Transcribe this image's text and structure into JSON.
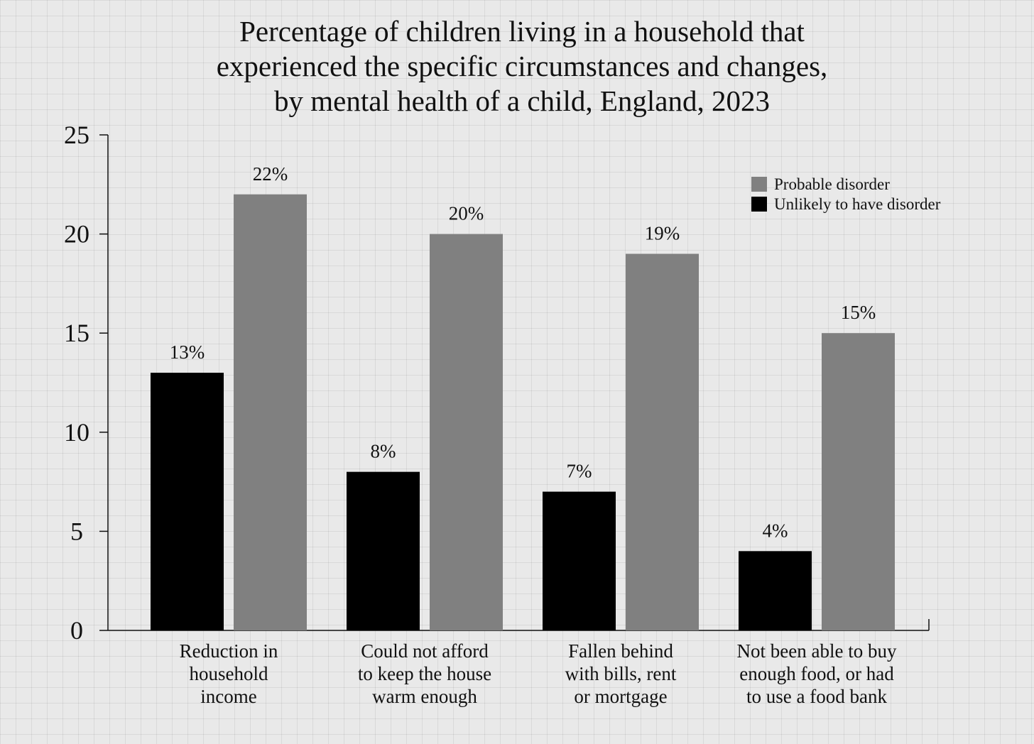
{
  "chart_data": {
    "type": "bar",
    "title": "Percentage of children living in a household that\nexperienced the specific circumstances and changes,\nby mental health of a child, England, 2023",
    "categories": [
      "Reduction in\nhousehold\nincome",
      "Could not afford\nto keep the house\nwarm enough",
      "Fallen behind\nwith bills, rent\nor mortgage",
      "Not been able to buy\nenough food, or had\nto use a food bank"
    ],
    "series": [
      {
        "name": "Probable disorder",
        "color": "#808080",
        "values": [
          22,
          20,
          19,
          15
        ],
        "value_labels": [
          "22%",
          "20%",
          "19%",
          "15%"
        ]
      },
      {
        "name": "Unlikely to have disorder",
        "color": "#000000",
        "values": [
          13,
          8,
          7,
          4
        ],
        "value_labels": [
          "13%",
          "8%",
          "7%",
          "4%"
        ]
      }
    ],
    "ylim": [
      0,
      25
    ],
    "yticks": [
      0,
      5,
      10,
      15,
      20,
      25
    ],
    "legend": "upper right",
    "grid": false
  }
}
